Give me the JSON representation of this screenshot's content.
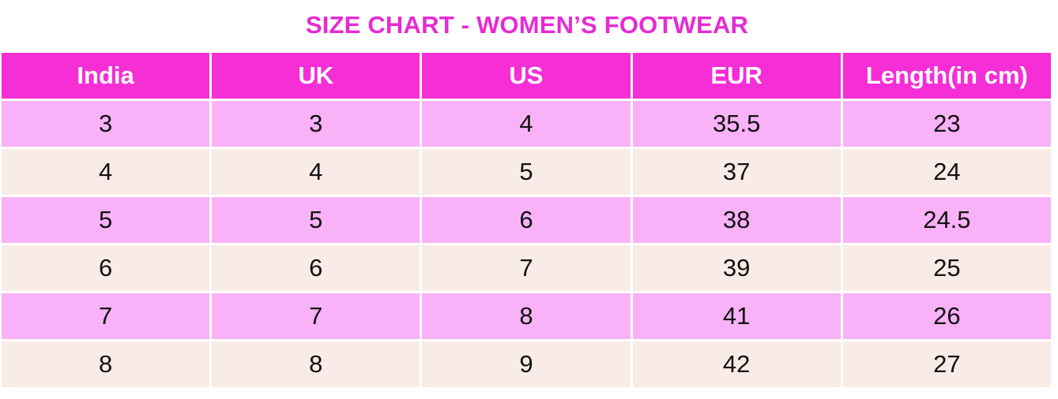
{
  "title": "SIZE CHART - WOMEN’S FOOTWEAR",
  "table": {
    "headers": [
      "India",
      "UK",
      "US",
      "EUR",
      "Length(in cm)"
    ],
    "rows": [
      [
        "3",
        "3",
        "4",
        "35.5",
        "23"
      ],
      [
        "4",
        "4",
        "5",
        "37",
        "24"
      ],
      [
        "5",
        "5",
        "6",
        "38",
        "24.5"
      ],
      [
        "6",
        "6",
        "7",
        "39",
        "25"
      ],
      [
        "7",
        "7",
        "8",
        "41",
        "26"
      ],
      [
        "8",
        "8",
        "9",
        "42",
        "27"
      ]
    ]
  },
  "colors": {
    "title": "#e62bd3",
    "header_bg": "#f52ed6",
    "header_text": "#ffffff",
    "row_pink": "#f9b1f7",
    "row_cream": "#f9ebe6"
  }
}
